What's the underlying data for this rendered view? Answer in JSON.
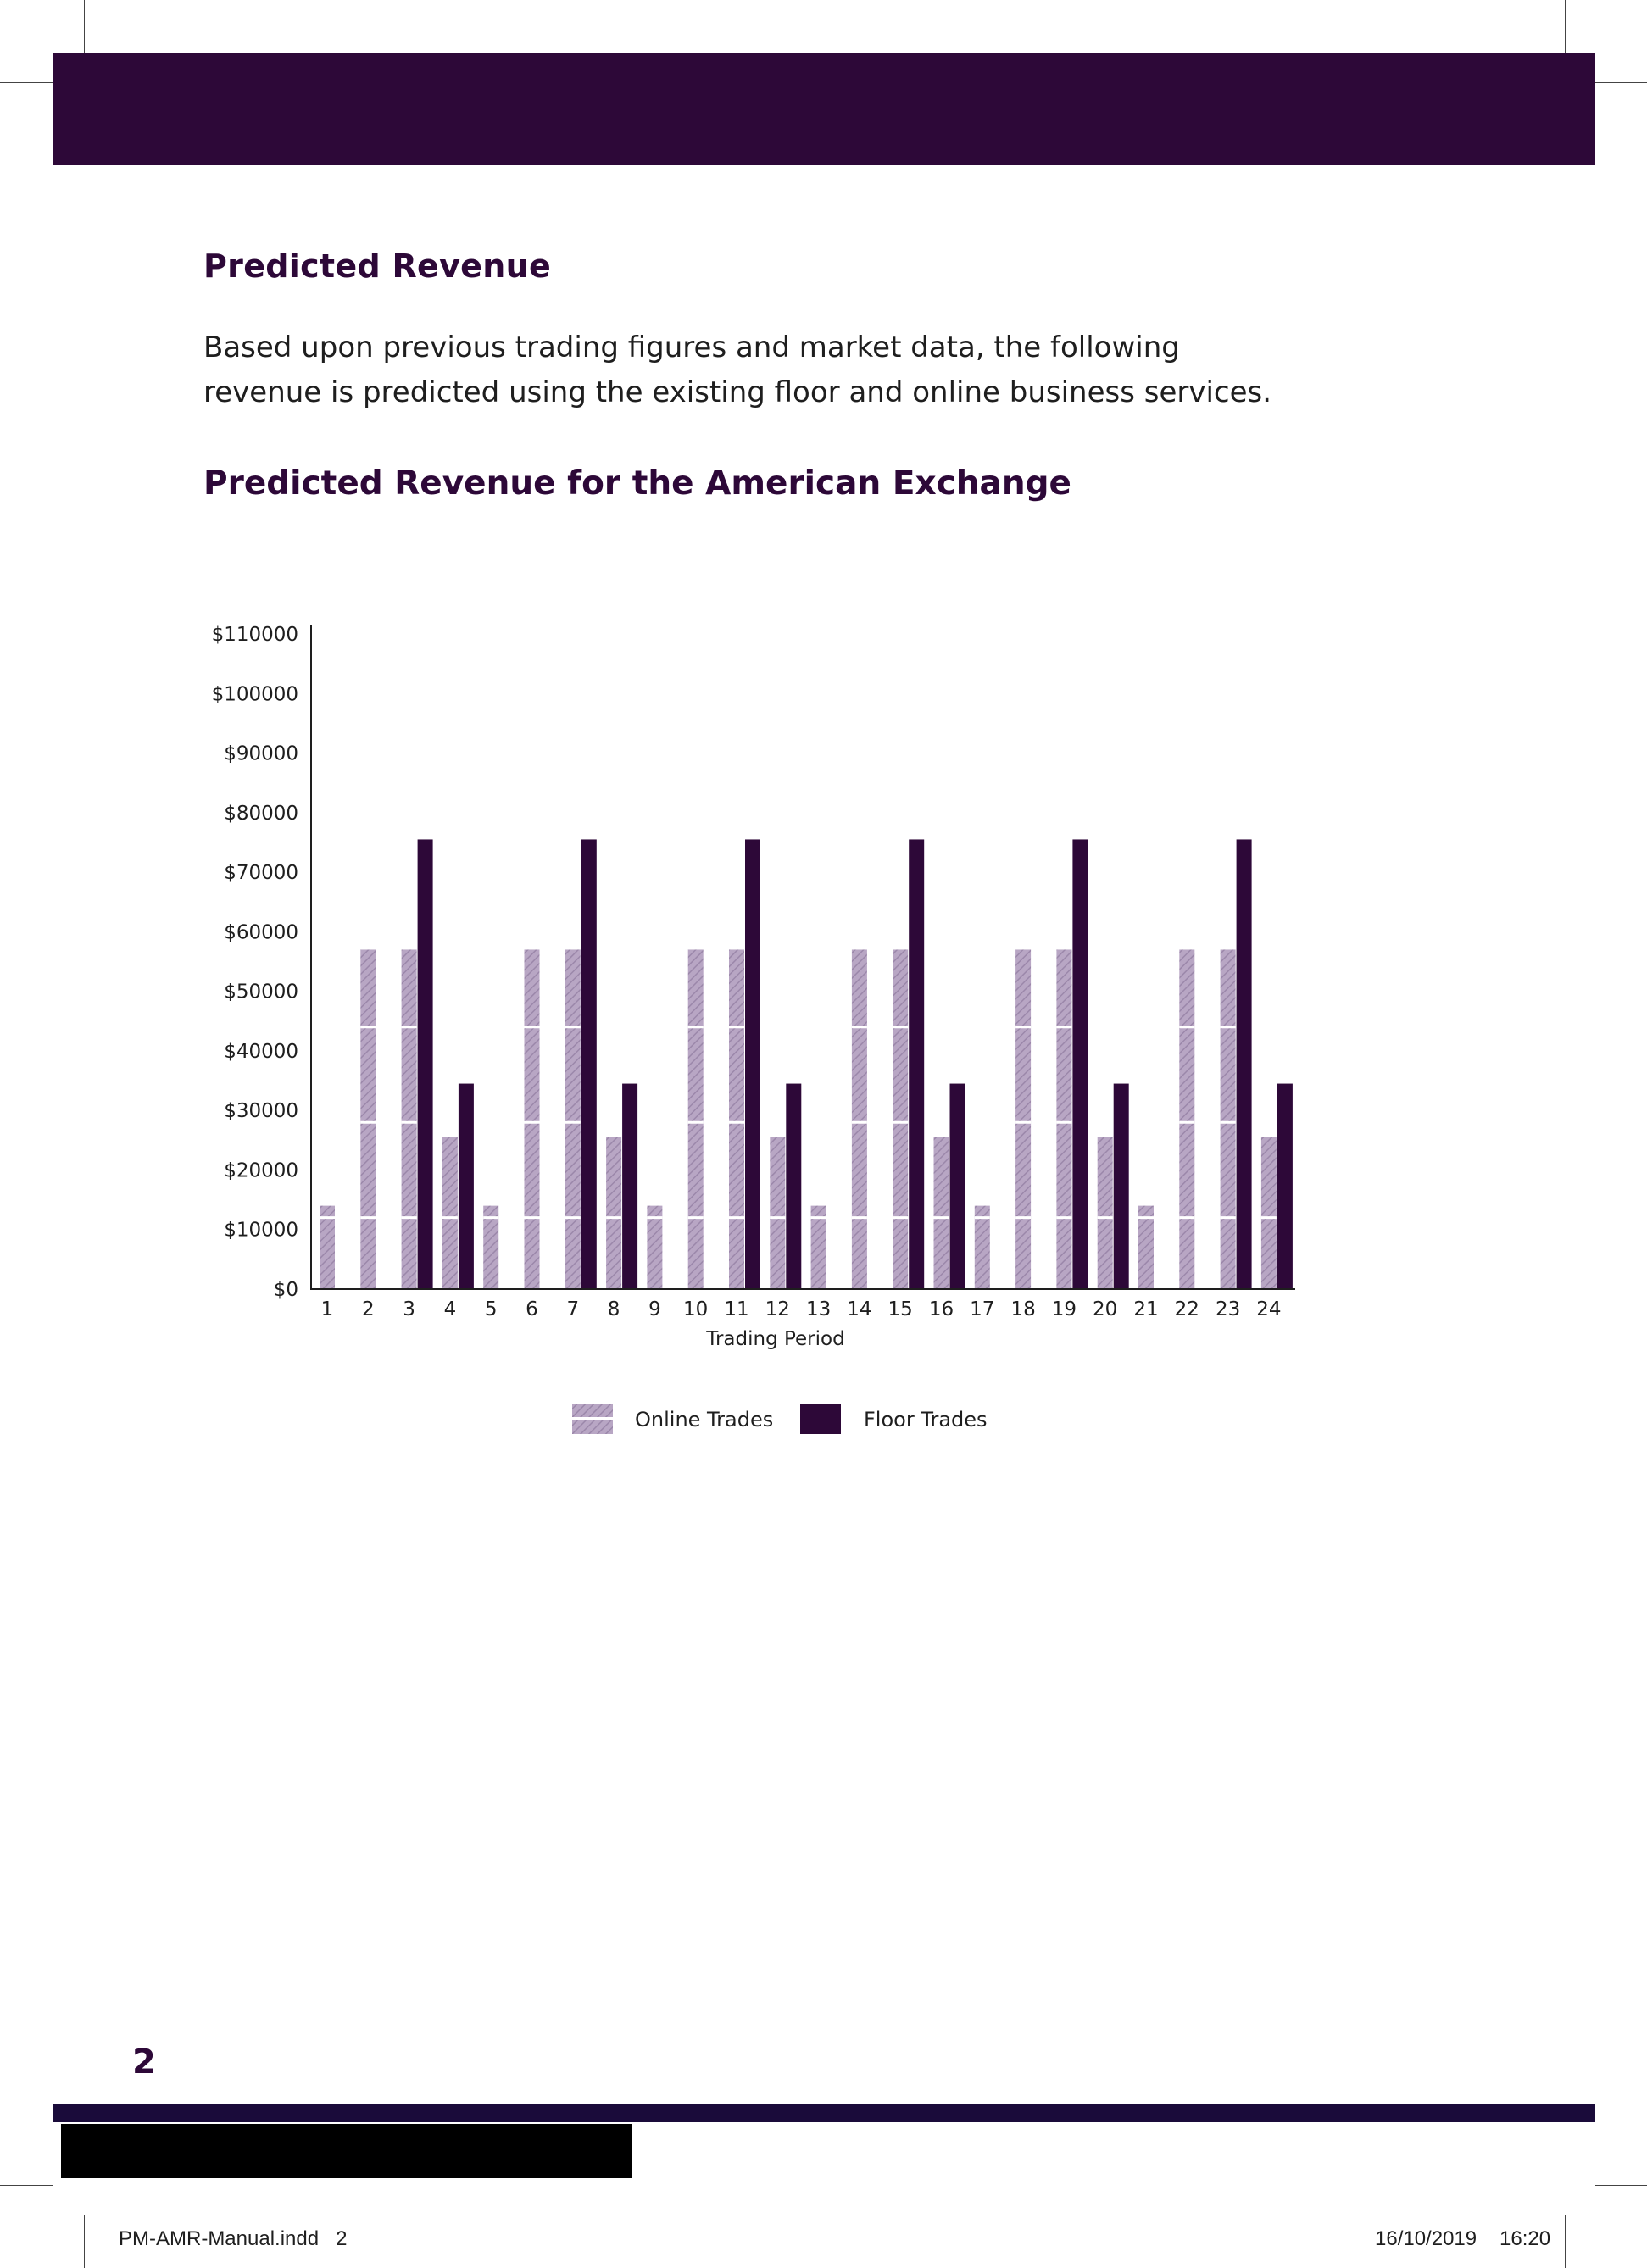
{
  "colors": {
    "brand": "#2d0838",
    "online_bar": "#b8a6c4",
    "floor_bar": "#2d0838",
    "footer_band": "#1a0b3a"
  },
  "section": {
    "heading": "Predicted Revenue",
    "paragraph_lines": [
      "Based upon previous trading figures and market data, the following",
      "revenue is predicted using the existing floor and online business services."
    ]
  },
  "chart_heading": "Predicted Revenue for the American Exchange",
  "chart_data": {
    "type": "bar",
    "title": "Predicted Revenue for the American Exchange",
    "xlabel": "Trading Period",
    "ylabel": "",
    "ylim": [
      0,
      110000
    ],
    "yticks": [
      0,
      10000,
      20000,
      30000,
      40000,
      50000,
      60000,
      70000,
      80000,
      90000,
      100000,
      110000
    ],
    "ytick_labels": [
      "$0",
      "$10000",
      "$20000",
      "$30000",
      "$40000",
      "$50000",
      "$60000",
      "$70000",
      "$80000",
      "$90000",
      "$100000",
      "$110000"
    ],
    "categories": [
      "1",
      "2",
      "3",
      "4",
      "5",
      "6",
      "7",
      "8",
      "9",
      "10",
      "11",
      "12",
      "13",
      "14",
      "15",
      "16",
      "17",
      "18",
      "19",
      "20",
      "21",
      "22",
      "23",
      "24"
    ],
    "series": [
      {
        "name": "Online Trades",
        "color": "#b8a6c4",
        "values": [
          14000,
          57000,
          57000,
          25500,
          14000,
          57000,
          57000,
          25500,
          14000,
          57000,
          57000,
          25500,
          14000,
          57000,
          57000,
          25500,
          14000,
          57000,
          57000,
          25500,
          14000,
          57000,
          57000,
          25500
        ]
      },
      {
        "name": "Floor Trades",
        "color": "#2d0838",
        "values": [
          0,
          0,
          75500,
          34500,
          0,
          0,
          75500,
          34500,
          0,
          0,
          75500,
          34500,
          0,
          0,
          75500,
          34500,
          0,
          0,
          75500,
          34500,
          0,
          0,
          75500,
          34500
        ]
      }
    ],
    "grid": false,
    "legend": "bottom-center"
  },
  "footer": {
    "page_number": "2",
    "slug_file": "PM-AMR-Manual.indd   2",
    "slug_date": "16/10/2019",
    "slug_time": "16:20"
  }
}
